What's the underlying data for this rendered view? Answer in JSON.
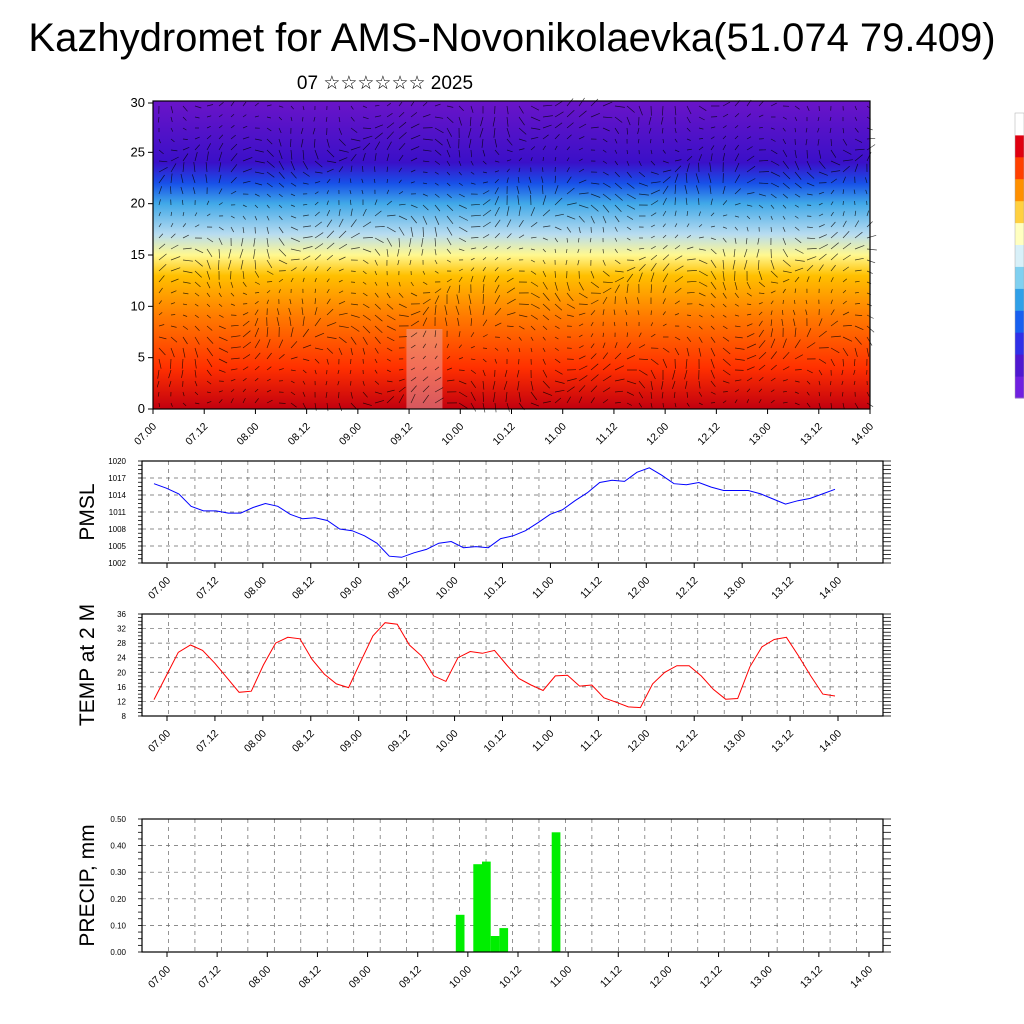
{
  "title": "Kazhydromet for AMS-Novonikolaevka(51.074 79.409)",
  "subtitle": "07 ☆☆☆☆☆☆ 2025",
  "time_ticks": [
    "07.00",
    "07.12",
    "08.00",
    "08.12",
    "09.00",
    "09.12",
    "10.00",
    "10.12",
    "11.00",
    "11.12",
    "12.00",
    "12.12",
    "13.00",
    "13.12",
    "14.00"
  ],
  "colors": {
    "pmsl": "#0000ff",
    "temp": "#ff0000",
    "precip": "#00ee00",
    "axis": "#000000",
    "grid": "#666666"
  },
  "chart_data": [
    {
      "type": "heatmap",
      "title": "",
      "xlabel": "",
      "ylabel": "",
      "ylim": [
        0,
        30
      ],
      "yticks": [
        "0",
        "5",
        "10",
        "15",
        "20",
        "25",
        "30"
      ],
      "colormap": [
        "#c2000f",
        "#ff3000",
        "#ff7a00",
        "#ffc000",
        "#fff890",
        "#b8dcf0",
        "#40a8e8",
        "#1850e8",
        "#3a10c8",
        "#6a14c8"
      ],
      "layers_top": [
        4,
        9,
        13,
        15,
        17,
        20,
        22,
        24,
        30
      ],
      "overlay": "wind vectors"
    },
    {
      "type": "line",
      "title": "",
      "ylabel": "PMSL",
      "ylim": [
        1002,
        1020
      ],
      "yticks": [
        "1002",
        "1005",
        "1008",
        "1011",
        "1014",
        "1017",
        "1020"
      ],
      "series": [
        {
          "values": [
            1016,
            1015.2,
            1014.2,
            1012,
            1011.2,
            1011.2,
            1010.8,
            1010.8,
            1011.8,
            1012.5,
            1012,
            1010.6,
            1009.8,
            1010,
            1009.5,
            1008,
            1007.7,
            1006.8,
            1005.5,
            1003.2,
            1003,
            1003.8,
            1004.4,
            1005.5,
            1005.8,
            1004.7,
            1004.9,
            1004.7,
            1006.3,
            1006.8,
            1007.7,
            1009.1,
            1010.6,
            1011.4,
            1013,
            1014.4,
            1016.2,
            1016.6,
            1016.4,
            1018,
            1018.8,
            1017.5,
            1016,
            1015.8,
            1016.2,
            1015.4,
            1014.8,
            1014.8,
            1014.8,
            1014.2,
            1013.3,
            1012.4,
            1013,
            1013.4,
            1014.2,
            1015
          ]
        }
      ]
    },
    {
      "type": "line",
      "title": "",
      "ylabel": "TEMP at 2 M",
      "ylim": [
        8,
        36
      ],
      "yticks": [
        "8",
        "12",
        "16",
        "20",
        "24",
        "28",
        "32",
        "36"
      ],
      "series": [
        {
          "values": [
            12.5,
            19,
            25.5,
            27.5,
            26,
            22.5,
            18.5,
            14.5,
            14.8,
            22,
            28,
            29.6,
            29.2,
            23.5,
            19.5,
            16.8,
            15.8,
            23,
            30,
            33.6,
            33.2,
            27.5,
            24.5,
            19,
            17.5,
            24,
            25.7,
            25.2,
            26,
            22,
            18.3,
            16.5,
            15,
            19,
            19.2,
            16.2,
            16.5,
            13,
            11.8,
            10.5,
            10.3,
            16.8,
            20,
            21.8,
            21.8,
            19,
            15.3,
            12.6,
            12.8,
            21.5,
            27,
            29,
            29.6,
            24.5,
            19,
            14,
            13.5
          ]
        }
      ]
    },
    {
      "type": "bar",
      "title": "",
      "ylabel": "PRECIP, mm",
      "ylim": [
        0,
        0.5
      ],
      "yticks": [
        "0.00",
        "0.10",
        "0.20",
        "0.30",
        "0.40",
        "0.50"
      ],
      "hours_per_bar": 3,
      "values": [
        0,
        0,
        0,
        0,
        0,
        0,
        0,
        0,
        0,
        0,
        0,
        0,
        0,
        0,
        0,
        0,
        0,
        0,
        0,
        0,
        0,
        0,
        0,
        0,
        0,
        0,
        0,
        0,
        0,
        0,
        0,
        0,
        0,
        0,
        0,
        0,
        0.14,
        0,
        0.33,
        0.34,
        0.06,
        0.09,
        0,
        0,
        0,
        0,
        0,
        0.45,
        0,
        0,
        0,
        0,
        0,
        0,
        0,
        0,
        0,
        0,
        0,
        0,
        0,
        0,
        0,
        0,
        0,
        0,
        0,
        0,
        0,
        0,
        0,
        0,
        0,
        0,
        0,
        0,
        0,
        0,
        0,
        0,
        0,
        0,
        0,
        0,
        0
      ]
    }
  ],
  "colorbar": [
    "#7020e0",
    "#5018d0",
    "#3030e8",
    "#1860f0",
    "#30a0e8",
    "#80d0f0",
    "#d8f0f8",
    "#ffffc0",
    "#ffd040",
    "#ff9000",
    "#ff4000",
    "#e00010",
    "#ffffff"
  ]
}
